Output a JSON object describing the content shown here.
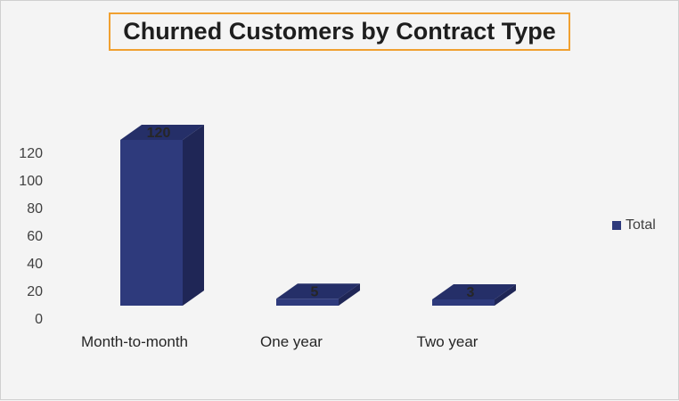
{
  "chart_data": {
    "type": "bar",
    "title": "Churned Customers by Contract Type",
    "categories": [
      "Month-to-month",
      "One year",
      "Two year"
    ],
    "series": [
      {
        "name": "Total",
        "values": [
          120,
          5,
          3
        ]
      }
    ],
    "yticks": [
      0,
      20,
      40,
      60,
      80,
      100,
      120
    ],
    "ylim": [
      0,
      120
    ],
    "legend_position": "right",
    "grid": false,
    "style": "3d-column"
  },
  "colors": {
    "front": "#2e3a7c",
    "top": "#252f68",
    "side": "#1f2656",
    "title_border": "#f0a030"
  }
}
